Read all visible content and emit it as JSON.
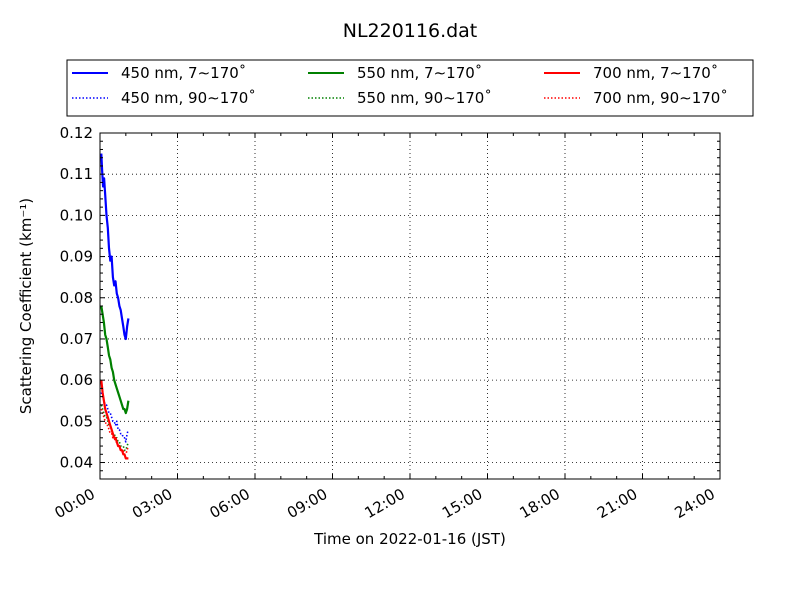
{
  "chart_data": {
    "type": "line",
    "title": "NL220116.dat",
    "xlabel": "Time on 2022-01-16 (JST)",
    "ylabel": "Scattering Coefficient (km⁻¹)",
    "x_unit": "hours",
    "xlim": [
      0,
      24
    ],
    "ylim": [
      0.036,
      0.12
    ],
    "x_ticks": [
      0,
      3,
      6,
      9,
      12,
      15,
      18,
      21,
      24
    ],
    "x_tick_labels": [
      "00:00",
      "03:00",
      "06:00",
      "09:00",
      "12:00",
      "15:00",
      "18:00",
      "21:00",
      "24:00"
    ],
    "y_ticks": [
      0.04,
      0.05,
      0.06,
      0.07,
      0.08,
      0.09,
      0.1,
      0.11,
      0.12
    ],
    "y_tick_labels": [
      "0.04",
      "0.05",
      "0.06",
      "0.07",
      "0.08",
      "0.09",
      "0.10",
      "0.11",
      "0.12"
    ],
    "grid": true,
    "legend_position": "top",
    "series": [
      {
        "name": "450 nm, 7∼170˚",
        "color": "#0000ff",
        "style": "solid",
        "x": [
          0.05,
          0.08,
          0.12,
          0.16,
          0.2,
          0.25,
          0.3,
          0.35,
          0.4,
          0.45,
          0.5,
          0.55,
          0.6,
          0.65,
          0.7,
          0.75,
          0.8,
          0.85,
          0.9,
          0.95,
          1.0,
          1.05,
          1.1
        ],
        "values": [
          0.115,
          0.111,
          0.107,
          0.109,
          0.105,
          0.1,
          0.097,
          0.092,
          0.089,
          0.09,
          0.085,
          0.083,
          0.084,
          0.081,
          0.08,
          0.078,
          0.077,
          0.075,
          0.073,
          0.071,
          0.07,
          0.073,
          0.075
        ]
      },
      {
        "name": "450 nm, 90∼170˚",
        "color": "#0000ff",
        "style": "dotted",
        "x": [
          0.05,
          0.1,
          0.15,
          0.2,
          0.25,
          0.3,
          0.35,
          0.4,
          0.45,
          0.5,
          0.55,
          0.6,
          0.65,
          0.7,
          0.75,
          0.8,
          0.85,
          0.9,
          0.95,
          1.0,
          1.05,
          1.1
        ],
        "values": [
          0.057,
          0.056,
          0.055,
          0.054,
          0.054,
          0.053,
          0.052,
          0.052,
          0.051,
          0.05,
          0.05,
          0.049,
          0.05,
          0.048,
          0.048,
          0.047,
          0.047,
          0.046,
          0.046,
          0.045,
          0.047,
          0.048
        ]
      },
      {
        "name": "550 nm, 7∼170˚",
        "color": "#008000",
        "style": "solid",
        "x": [
          0.05,
          0.1,
          0.15,
          0.2,
          0.25,
          0.3,
          0.35,
          0.4,
          0.45,
          0.5,
          0.55,
          0.6,
          0.65,
          0.7,
          0.75,
          0.8,
          0.85,
          0.9,
          0.95,
          1.0,
          1.05,
          1.1
        ],
        "values": [
          0.078,
          0.076,
          0.074,
          0.071,
          0.07,
          0.068,
          0.066,
          0.065,
          0.063,
          0.062,
          0.06,
          0.059,
          0.058,
          0.057,
          0.056,
          0.055,
          0.054,
          0.053,
          0.053,
          0.052,
          0.053,
          0.055
        ]
      },
      {
        "name": "550 nm, 90∼170˚",
        "color": "#008000",
        "style": "dotted",
        "x": [
          0.05,
          0.1,
          0.15,
          0.2,
          0.25,
          0.3,
          0.35,
          0.4,
          0.45,
          0.5,
          0.55,
          0.6,
          0.65,
          0.7,
          0.75,
          0.8,
          0.85,
          0.9,
          0.95,
          1.0,
          1.05,
          1.1
        ],
        "values": [
          0.054,
          0.053,
          0.052,
          0.051,
          0.051,
          0.05,
          0.049,
          0.049,
          0.048,
          0.047,
          0.047,
          0.046,
          0.046,
          0.045,
          0.045,
          0.044,
          0.044,
          0.044,
          0.043,
          0.043,
          0.044,
          0.045
        ]
      },
      {
        "name": "700 nm, 7∼170˚",
        "color": "#ff0000",
        "style": "solid",
        "x": [
          0.05,
          0.1,
          0.15,
          0.2,
          0.25,
          0.3,
          0.35,
          0.4,
          0.45,
          0.5,
          0.55,
          0.6,
          0.65,
          0.7,
          0.75,
          0.8,
          0.85,
          0.9,
          0.95,
          1.0,
          1.05,
          1.1
        ],
        "values": [
          0.06,
          0.057,
          0.055,
          0.053,
          0.052,
          0.051,
          0.05,
          0.049,
          0.048,
          0.047,
          0.046,
          0.046,
          0.045,
          0.044,
          0.044,
          0.043,
          0.043,
          0.042,
          0.042,
          0.041,
          0.041,
          0.041
        ]
      },
      {
        "name": "700 nm, 90∼170˚",
        "color": "#ff0000",
        "style": "dotted",
        "x": [
          0.05,
          0.1,
          0.15,
          0.2,
          0.25,
          0.3,
          0.35,
          0.4,
          0.45,
          0.5,
          0.55,
          0.6,
          0.65,
          0.7,
          0.75,
          0.8,
          0.85,
          0.9,
          0.95,
          1.0,
          1.05,
          1.1
        ],
        "values": [
          0.053,
          0.052,
          0.051,
          0.05,
          0.049,
          0.049,
          0.048,
          0.047,
          0.047,
          0.046,
          0.046,
          0.045,
          0.045,
          0.044,
          0.044,
          0.043,
          0.043,
          0.043,
          0.042,
          0.042,
          0.043,
          0.044
        ]
      }
    ]
  }
}
